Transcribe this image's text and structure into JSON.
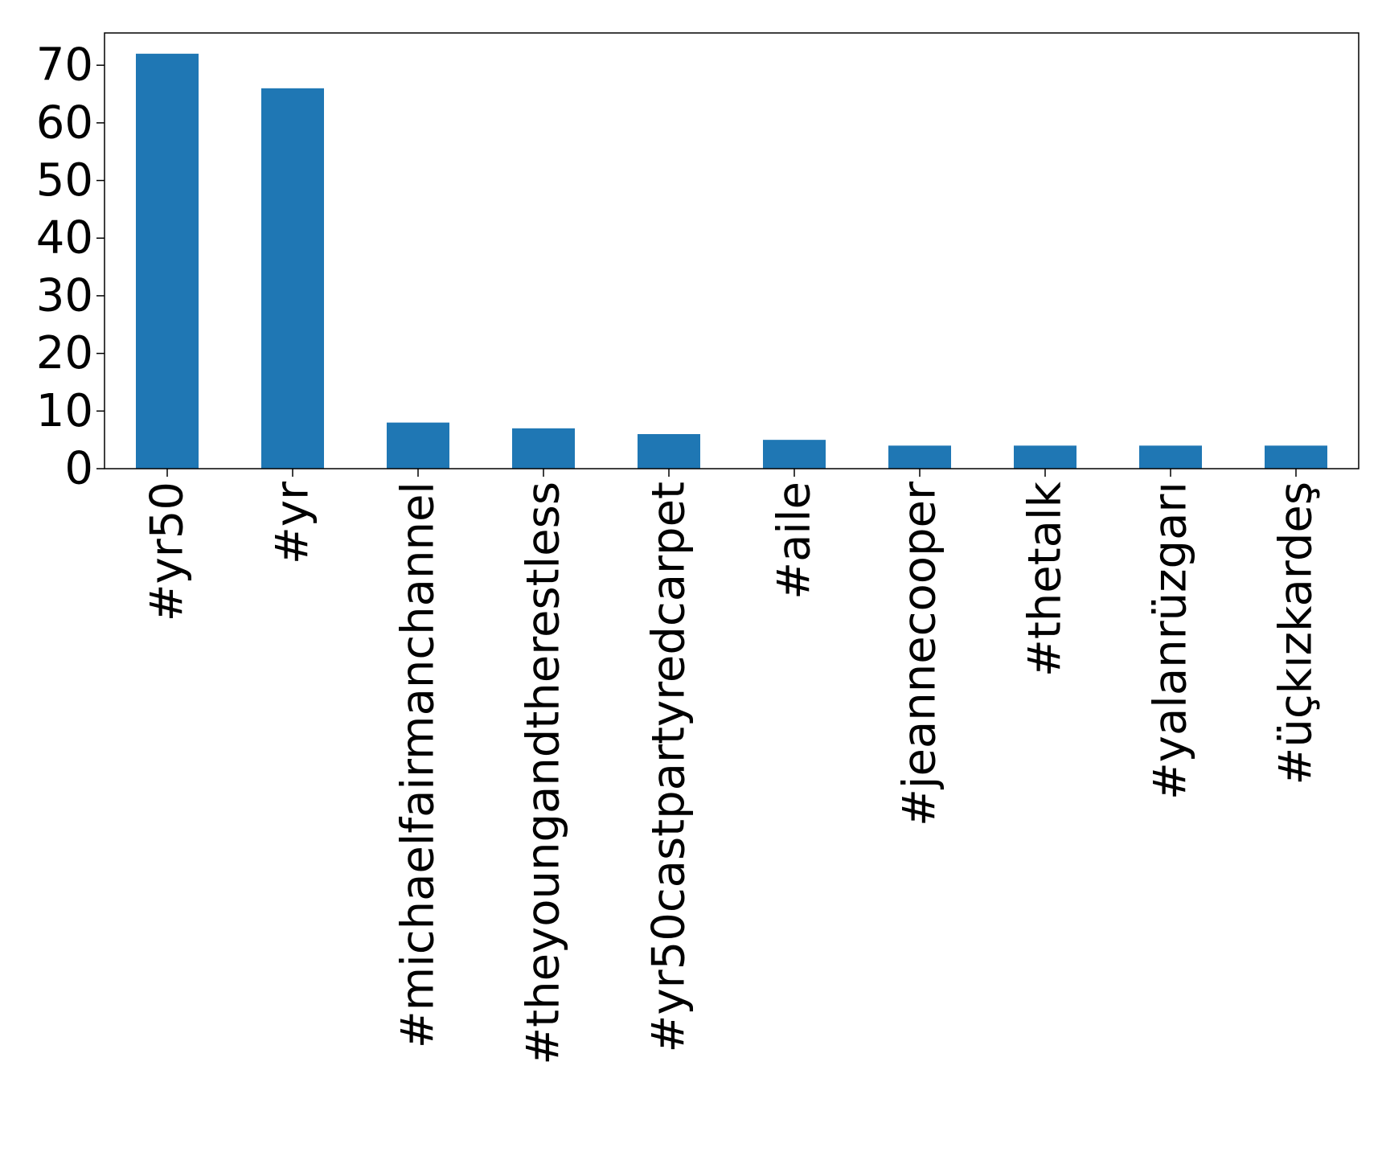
{
  "chart_data": {
    "type": "bar",
    "categories": [
      "#yr50",
      "#yr",
      "#michaelfairmanchannel",
      "#theyoungandtherestless",
      "#yr50castpartyredcarpet",
      "#aile",
      "#jeannecooper",
      "#thetalk",
      "#yalanrüzgarı",
      "#üçkızkardeş"
    ],
    "values": [
      72,
      66,
      8,
      7,
      6,
      5,
      4,
      4,
      4,
      4
    ],
    "yticks": [
      0,
      10,
      20,
      30,
      40,
      50,
      60,
      70
    ],
    "ylim": [
      0,
      75.6
    ],
    "title": "",
    "xlabel": "",
    "ylabel": "",
    "grid": false,
    "bar_color": "#1f77b4",
    "axis_color": "#000000"
  }
}
